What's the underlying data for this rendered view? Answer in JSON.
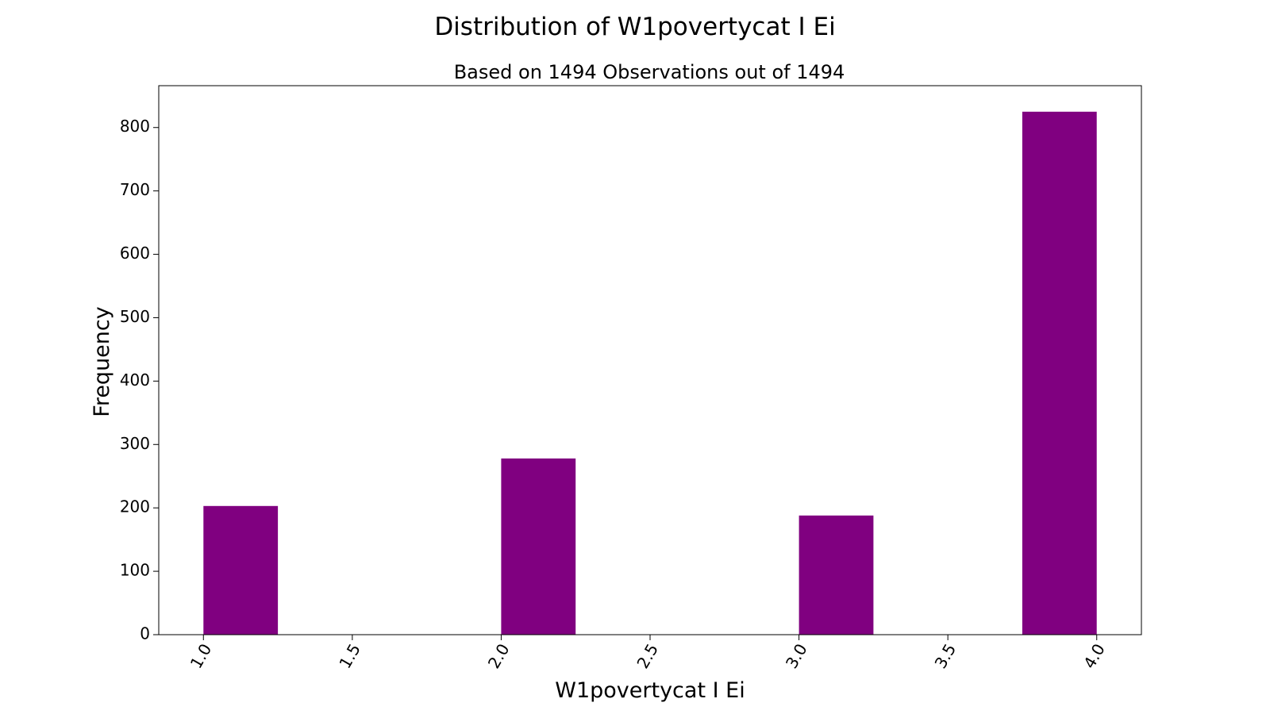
{
  "chart_data": {
    "type": "bar",
    "title": "Distribution of W1povertycat I Ei",
    "subtitle": "Based on 1494 Observations out of 1494",
    "xlabel": "W1povertycat I Ei",
    "ylabel": "Frequency",
    "xlim": [
      0.85,
      4.15
    ],
    "ylim": [
      0,
      866
    ],
    "x_ticks": [
      "1.0",
      "1.5",
      "2.0",
      "2.5",
      "3.0",
      "3.5",
      "4.0"
    ],
    "y_ticks": [
      "0",
      "100",
      "200",
      "300",
      "400",
      "500",
      "600",
      "700",
      "800"
    ],
    "bin_width": 0.25,
    "bars": [
      {
        "x_start": 1.0,
        "x_end": 1.25,
        "value": 203
      },
      {
        "x_start": 2.0,
        "x_end": 2.25,
        "value": 278
      },
      {
        "x_start": 3.0,
        "x_end": 3.25,
        "value": 188
      },
      {
        "x_start": 3.75,
        "x_end": 4.0,
        "value": 825
      }
    ],
    "bar_color": "#800080",
    "grid": false,
    "legend": "none"
  }
}
